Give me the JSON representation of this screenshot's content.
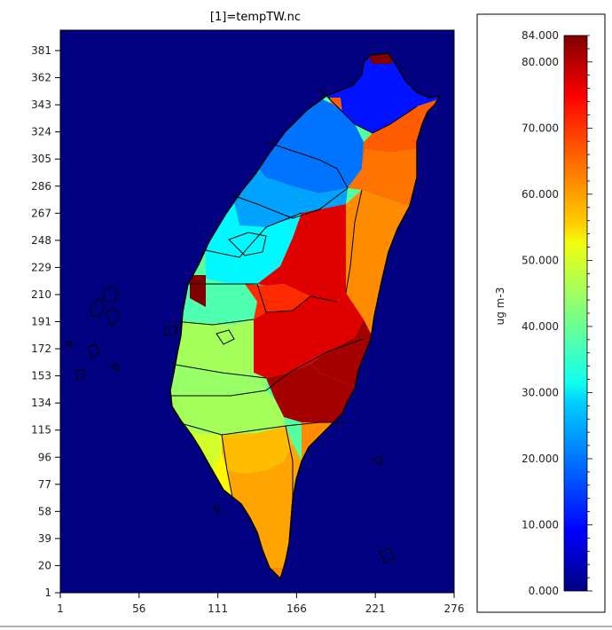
{
  "title": "[1]=tempTW.nc",
  "colors": {
    "ocean": "#000080",
    "coastline": "#000000",
    "frame": "#000000",
    "background": "#ffffff"
  },
  "colormap": {
    "name": "jet",
    "min": 0,
    "max": 84,
    "unit_label": "ug m-3",
    "tick_labels": [
      "84.000",
      "80.000",
      "70.000",
      "60.000",
      "50.000",
      "40.000",
      "30.000",
      "20.000",
      "10.000",
      "0.000"
    ]
  },
  "axes": {
    "x_ticks": [
      "1",
      "56",
      "111",
      "166",
      "221",
      "276"
    ],
    "y_ticks": [
      "381",
      "362",
      "343",
      "324",
      "305",
      "286",
      "267",
      "248",
      "229",
      "210",
      "191",
      "172",
      "153",
      "134",
      "115",
      "96",
      "77",
      "58",
      "39",
      "20",
      "1"
    ]
  },
  "chart_data": {
    "type": "heatmap",
    "title": "[1]=tempTW.nc",
    "xlim": [
      1,
      276
    ],
    "ylim": [
      1,
      381
    ],
    "colorbar": {
      "min": 0,
      "max": 84,
      "unit": "ug m-3"
    },
    "regions": [
      {
        "id": "far-north-tip",
        "value": 84
      },
      {
        "id": "north-east-orange-spot",
        "value": 66
      },
      {
        "id": "taipei-basin",
        "value": 12
      },
      {
        "id": "north-west-taoyuan",
        "value": 20
      },
      {
        "id": "hsinchu",
        "value": 24
      },
      {
        "id": "miaoli",
        "value": 31
      },
      {
        "id": "northeast-coast-yilan",
        "value": 66
      },
      {
        "id": "yilan-south",
        "value": 64
      },
      {
        "id": "taichung-coast",
        "value": 38
      },
      {
        "id": "taichung-spot",
        "value": 84
      },
      {
        "id": "changhua",
        "value": 45
      },
      {
        "id": "central-mountain",
        "value": 76
      },
      {
        "id": "nantou-west",
        "value": 70
      },
      {
        "id": "hualien",
        "value": 62
      },
      {
        "id": "yunlin",
        "value": 44
      },
      {
        "id": "chiayi-mountain",
        "value": 76
      },
      {
        "id": "east-rift",
        "value": 81
      },
      {
        "id": "chiayi-coast",
        "value": 45
      },
      {
        "id": "south-central-mountain",
        "value": 81
      },
      {
        "id": "tainan",
        "value": 49
      },
      {
        "id": "kaohsiung-inland",
        "value": 58
      },
      {
        "id": "kaohsiung-coast",
        "value": 53
      },
      {
        "id": "pingtung",
        "value": 60
      },
      {
        "id": "taitung",
        "value": 62
      },
      {
        "id": "south-tip",
        "value": 62
      }
    ]
  }
}
